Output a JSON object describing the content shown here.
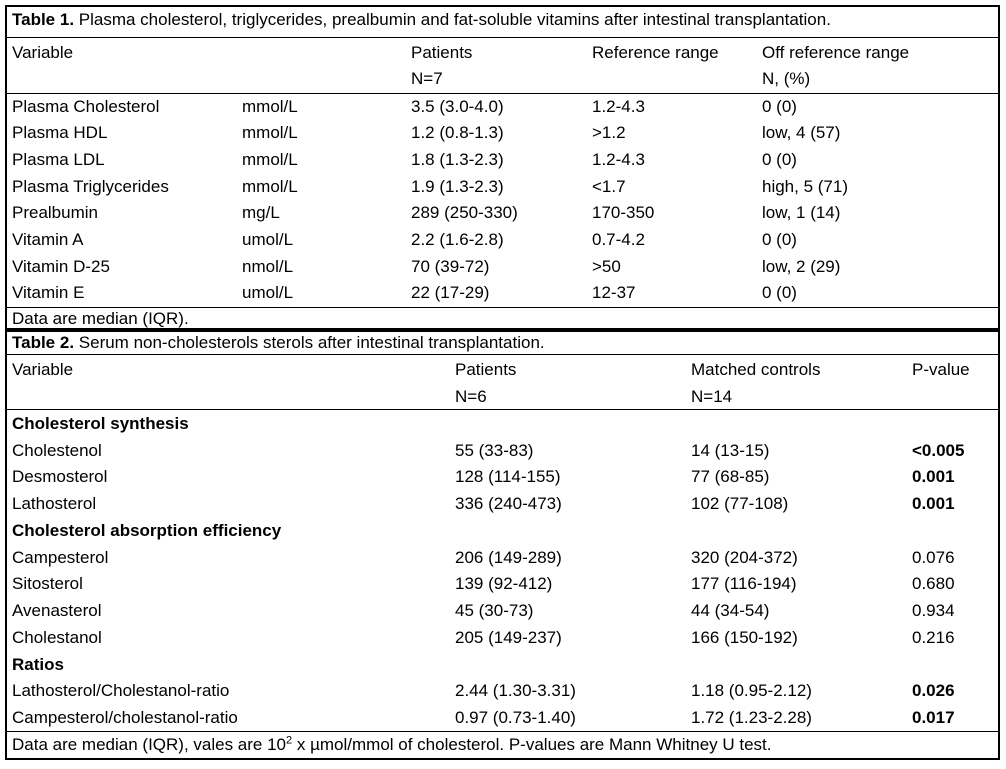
{
  "table1": {
    "caption_label": "Table 1.",
    "caption_text": " Plasma cholesterol, triglycerides, prealbumin and fat-soluble vitamins after intestinal transplantation.",
    "headers": {
      "variable": "Variable",
      "patients": "Patients",
      "patients_n": "N=7",
      "reference": "Reference range",
      "off": "Off reference range",
      "off_n": "N, (%)"
    },
    "rows": [
      {
        "name": "Plasma Cholesterol",
        "unit": "mmol/L",
        "patients": "3.5 (3.0-4.0)",
        "reference": "1.2-4.3",
        "off": "0 (0)"
      },
      {
        "name": "Plasma HDL",
        "unit": "mmol/L",
        "patients": "1.2 (0.8-1.3)",
        "reference": ">1.2",
        "off": "low, 4 (57)"
      },
      {
        "name": "Plasma LDL",
        "unit": "mmol/L",
        "patients": "1.8 (1.3-2.3)",
        "reference": "1.2-4.3",
        "off": "0 (0)"
      },
      {
        "name": "Plasma Triglycerides",
        "unit": "mmol/L",
        "patients": "1.9 (1.3-2.3)",
        "reference": "<1.7",
        "off": "high, 5 (71)"
      },
      {
        "name": "Prealbumin",
        "unit": "mg/L",
        "patients": "289 (250-330)",
        "reference": "170-350",
        "off": "low, 1 (14)"
      },
      {
        "name": "Vitamin A",
        "unit": "umol/L",
        "patients": "2.2 (1.6-2.8)",
        "reference": "0.7-4.2",
        "off": "0 (0)"
      },
      {
        "name": "Vitamin D-25",
        "unit": "nmol/L",
        "patients": "70 (39-72)",
        "reference": ">50",
        "off": "low, 2 (29)"
      },
      {
        "name": "Vitamin E",
        "unit": "umol/L",
        "patients": "22 (17-29)",
        "reference": "12-37",
        "off": "0 (0)"
      }
    ],
    "footer": "Data are median (IQR)."
  },
  "table2": {
    "caption_label": "Table 2.",
    "caption_text": " Serum non-cholesterols sterols after intestinal transplantation.",
    "headers": {
      "variable": "Variable",
      "patients": "Patients",
      "patients_n": "N=6",
      "controls": "Matched controls",
      "controls_n": "N=14",
      "pvalue": "P-value"
    },
    "sections": {
      "synthesis": "Cholesterol synthesis",
      "absorption": "Cholesterol absorption efficiency",
      "ratios": "Ratios"
    },
    "rows": [
      {
        "name": "Cholestenol",
        "patients": "55 (33-83)",
        "controls": "14 (13-15)",
        "p": "<0.005"
      },
      {
        "name": "Desmosterol",
        "patients": "128 (114-155)",
        "controls": "77 (68-85)",
        "p": "0.001"
      },
      {
        "name": "Lathosterol",
        "patients": "336 (240-473)",
        "controls": "102 (77-108)",
        "p": "0.001"
      },
      {
        "name": "Campesterol",
        "patients": "206 (149-289)",
        "controls": "320 (204-372)",
        "p": "0.076"
      },
      {
        "name": "Sitosterol",
        "patients": "139 (92-412)",
        "controls": "177 (116-194)",
        "p": "0.680"
      },
      {
        "name": "Avenasterol",
        "patients": "45 (30-73)",
        "controls": "44 (34-54)",
        "p": "0.934"
      },
      {
        "name": "Cholestanol",
        "patients": "205 (149-237)",
        "controls": "166 (150-192)",
        "p": "0.216"
      },
      {
        "name": "Lathosterol/Cholestanol-ratio",
        "patients": "2.44 (1.30-3.31)",
        "controls": "1.18 (0.95-2.12)",
        "p": "0.026"
      },
      {
        "name": "Campesterol/cholestanol-ratio",
        "patients": "0.97 (0.73-1.40)",
        "controls": "1.72 (1.23-2.28)",
        "p": "0.017"
      }
    ],
    "footer_a": "Data are median (IQR), vales are 10",
    "footer_sup": "2",
    "footer_b": " x µmol/mmol of cholesterol. P-values are Mann Whitney U test."
  }
}
